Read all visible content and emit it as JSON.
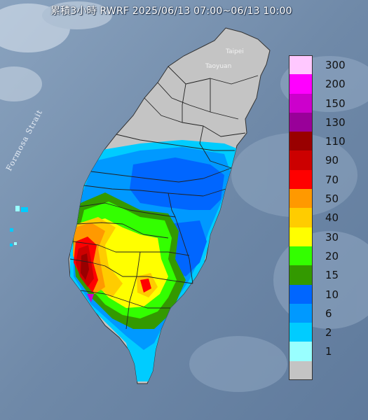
{
  "title": "累積3小時 RWRF 2025/06/13 07:00~06/13 10:00",
  "place_labels": {
    "taipei": "Taipei",
    "taoyuan": "Taoyuan",
    "strait": "Formosa Strait"
  },
  "legend": [
    {
      "label": "300",
      "color": "#ffc8ff"
    },
    {
      "label": "200",
      "color": "#ff00ff"
    },
    {
      "label": "150",
      "color": "#cc00cc"
    },
    {
      "label": "130",
      "color": "#990099"
    },
    {
      "label": "110",
      "color": "#990000"
    },
    {
      "label": "90",
      "color": "#cc0000"
    },
    {
      "label": "70",
      "color": "#ff0000"
    },
    {
      "label": "50",
      "color": "#ff9900"
    },
    {
      "label": "40",
      "color": "#ffcc00"
    },
    {
      "label": "30",
      "color": "#ffff00"
    },
    {
      "label": "20",
      "color": "#33ff00"
    },
    {
      "label": "15",
      "color": "#339900"
    },
    {
      "label": "10",
      "color": "#0066ff"
    },
    {
      "label": "6",
      "color": "#0099ff"
    },
    {
      "label": "2",
      "color": "#00ccff"
    },
    {
      "label": "1",
      "color": "#99ffff"
    },
    {
      "label": "",
      "color": "#c4c4c4"
    }
  ]
}
